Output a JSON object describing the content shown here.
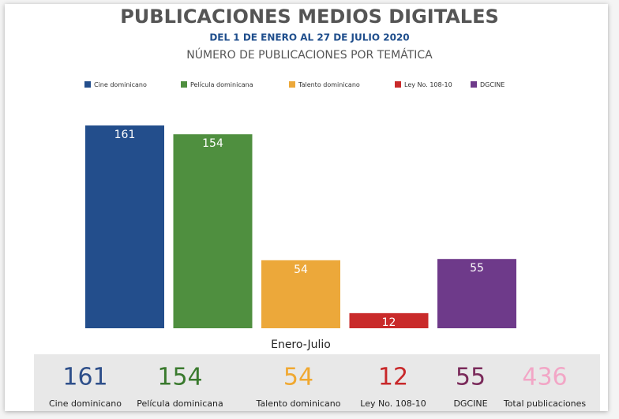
{
  "chart_data": {
    "type": "bar",
    "title": "PUBLICACIONES MEDIOS DIGITALES",
    "subtitle": "DEL 1 DE ENERO AL 27 DE JULIO 2020",
    "y_label": "NÚMERO DE PUBLICACIONES POR TEMÁTICA",
    "categories": [
      "Enero-Julio"
    ],
    "series": [
      {
        "name": "Cine dominicano",
        "color": "#234e8c",
        "values": [
          161
        ]
      },
      {
        "name": "Película dominicana",
        "color": "#4f8f3f",
        "values": [
          154
        ]
      },
      {
        "name": "Talento dominicano",
        "color": "#eca83a",
        "values": [
          54
        ]
      },
      {
        "name": "Ley No. 108-10",
        "color": "#c92a2a",
        "values": [
          12
        ]
      },
      {
        "name": "DGCINE",
        "color": "#6e3a8a",
        "values": [
          55
        ]
      }
    ],
    "legend": "top"
  },
  "summary": [
    {
      "value": 161,
      "label": "Cine dominicano",
      "color": "#2e4f8a"
    },
    {
      "value": 154,
      "label": "Película dominicana",
      "color": "#3a7a2e"
    },
    {
      "value": 54,
      "label": "Talento dominicano",
      "color": "#f0a830"
    },
    {
      "value": 12,
      "label": "Ley No. 108-10",
      "color": "#c8282a"
    },
    {
      "value": 55,
      "label": "DGCINE",
      "color": "#7a2a5a"
    },
    {
      "value": 436,
      "label": "Total publicaciones",
      "color": "#f2a6c6"
    }
  ]
}
